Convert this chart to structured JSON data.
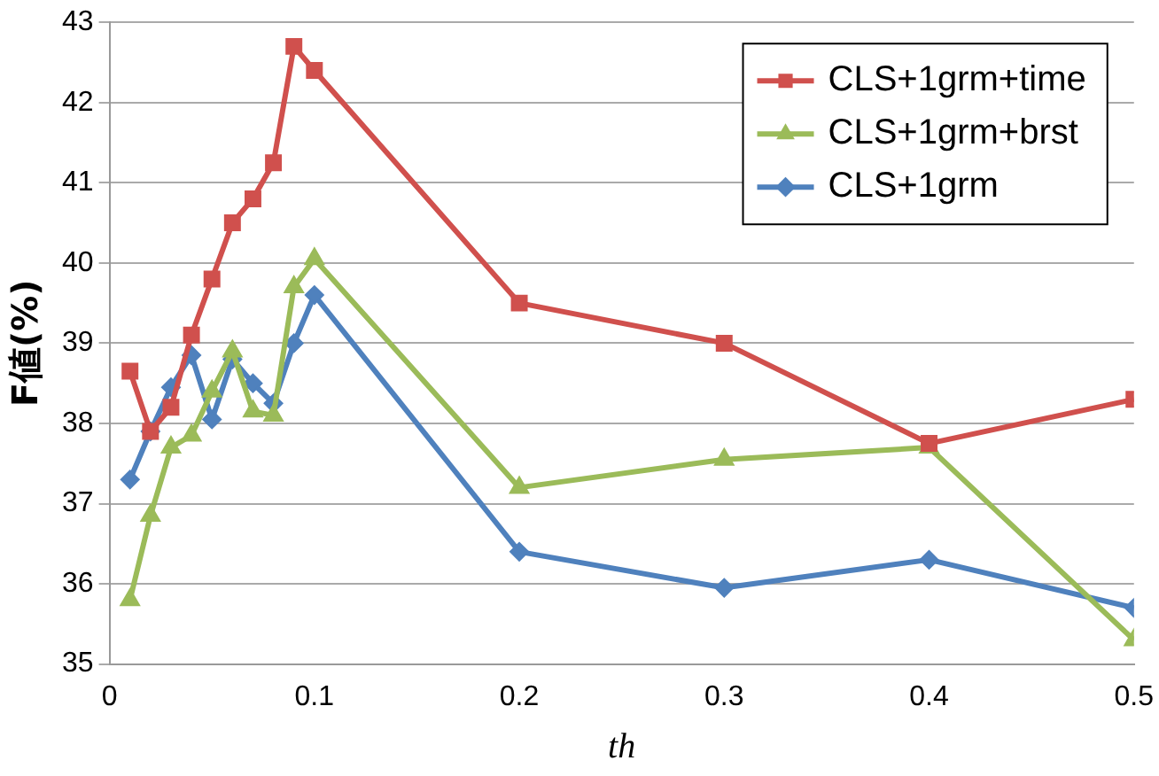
{
  "chart_data": {
    "type": "line",
    "xlabel": "th",
    "ylabel": "F値(%)",
    "x": [
      0.01,
      0.02,
      0.03,
      0.04,
      0.05,
      0.06,
      0.07,
      0.08,
      0.09,
      0.1,
      0.2,
      0.3,
      0.4,
      0.5
    ],
    "xlim": [
      0,
      0.5
    ],
    "xticks": [
      0,
      0.1,
      0.2,
      0.3,
      0.4,
      0.5
    ],
    "ylim": [
      35,
      43
    ],
    "yticks": [
      35,
      36,
      37,
      38,
      39,
      40,
      41,
      42,
      43
    ],
    "grid": "y",
    "legend": "top right",
    "line_style": "solid",
    "series": [
      {
        "name": "CLS+1grm+time",
        "color": "#d0504d",
        "marker": "square",
        "values": [
          38.65,
          37.9,
          38.2,
          39.1,
          39.8,
          40.5,
          40.8,
          41.25,
          42.7,
          42.4,
          39.5,
          39.0,
          37.75,
          38.3
        ]
      },
      {
        "name": "CLS+1grm+brst",
        "color": "#9bbb59",
        "marker": "triangle",
        "values": [
          35.8,
          36.85,
          37.7,
          37.85,
          38.4,
          38.9,
          38.15,
          38.1,
          39.7,
          40.05,
          37.2,
          37.55,
          37.7,
          35.3
        ]
      },
      {
        "name": "CLS+1grm",
        "color": "#4f81bd",
        "marker": "diamond",
        "values": [
          37.3,
          37.9,
          38.45,
          38.85,
          38.05,
          38.8,
          38.5,
          38.25,
          39.0,
          39.6,
          36.4,
          35.95,
          36.3,
          35.7
        ]
      }
    ]
  }
}
